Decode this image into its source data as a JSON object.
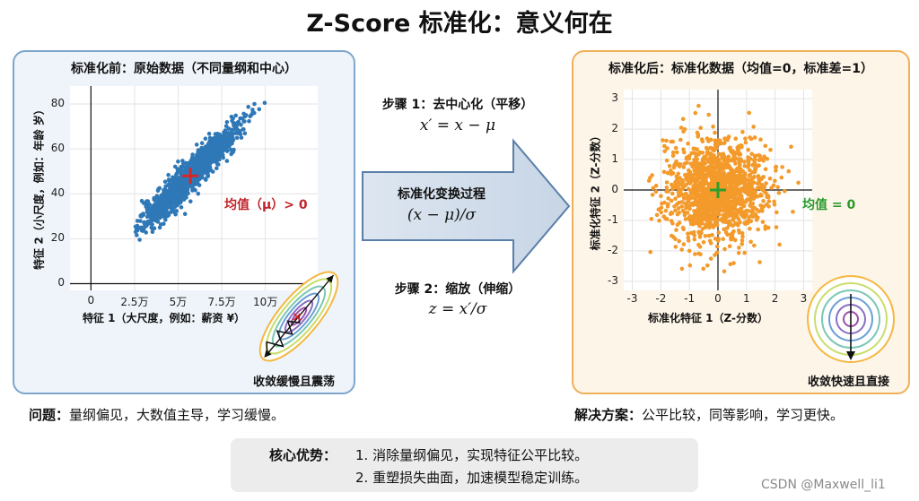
{
  "title": "Z-Score 标准化：意义何在",
  "left_panel": {
    "title": "标准化前：原始数据（不同量纲和中心）",
    "mean_label": "均值（μ）> 0",
    "x_axis_label": "特征 1（大尺度，例如：薪资 ¥）",
    "y_axis_label": "特征 2（小尺度，例如：年龄 岁）",
    "x_ticks": [
      "0",
      "2.5万",
      "5万",
      "7.5万",
      "10万"
    ],
    "y_ticks": [
      "0",
      "20",
      "40",
      "60",
      "80"
    ],
    "inset_caption": "收敛缓慢且震荡",
    "mean_marker": "+"
  },
  "right_panel": {
    "title": "标准化后：标准化数据（均值=0，标准差=1）",
    "mean_label": "均值 = 0",
    "x_axis_label": "标准化特征 1（Z-分数）",
    "y_axis_label": "标准化特征 2（Z-分数）",
    "x_ticks": [
      "-3",
      "-2",
      "-1",
      "0",
      "1",
      "2",
      "3"
    ],
    "y_ticks": [
      "3",
      "2",
      "1",
      "0",
      "-1",
      "-2",
      "-3"
    ],
    "inset_caption": "收敛快速且直接",
    "mean_marker": "+"
  },
  "middle": {
    "step1_title": "步骤 1：去中心化（平移）",
    "step1_formula": "x′ = x − μ",
    "arrow_title": "标准化变换过程",
    "arrow_formula": "(x − μ)/σ",
    "step2_title": "步骤 2：缩放（伸缩）",
    "step2_formula": "z = x′/σ"
  },
  "problem": {
    "label": "问题：",
    "text": "量纲偏见，大数值主导，学习缓慢。"
  },
  "solution": {
    "label": "解决方案：",
    "text": "公平比较，同等影响，学习更快。"
  },
  "core": {
    "label": "核心优势：",
    "line1": "1. 消除量纲偏见，实现特征公平比较。",
    "line2": "2. 重塑损失曲面，加速模型稳定训练。"
  },
  "watermark": "CSDN @Maxwell_li1",
  "colors": {
    "left_points": "#2f78b7",
    "right_points": "#f39a2b",
    "left_mean": "#d62728",
    "right_mean": "#2ca02c",
    "left_border": "#7ea6cc",
    "right_border": "#f0b058"
  },
  "chart_data": [
    {
      "type": "scatter",
      "title": "标准化前：原始数据（不同量纲和中心）",
      "xlabel": "特征 1（大尺度，例如：薪资 ¥）",
      "ylabel": "特征 2（小尺度，例如：年龄 岁）",
      "xlim": [
        -12000,
        130000
      ],
      "ylim": [
        -3,
        88
      ],
      "x_ticks": [
        0,
        25000,
        50000,
        75000,
        100000
      ],
      "y_ticks": [
        0,
        20,
        40,
        60,
        80
      ],
      "mean": {
        "x": 57000,
        "y": 48
      },
      "x_range_of_points": [
        25000,
        100000
      ],
      "y_range_of_points": [
        20,
        84
      ],
      "correlation": "strong positive",
      "annotation": "均值（μ）> 0",
      "grid": true
    },
    {
      "type": "scatter",
      "title": "标准化后：标准化数据（均值=0，标准差=1）",
      "xlabel": "标准化特征 1（Z-分数）",
      "ylabel": "标准化特征 2（Z-分数）",
      "xlim": [
        -3.3,
        3.3
      ],
      "ylim": [
        -3.3,
        3.3
      ],
      "x_ticks": [
        -3,
        -2,
        -1,
        0,
        1,
        2,
        3
      ],
      "y_ticks": [
        -3,
        -2,
        -1,
        0,
        1,
        2,
        3
      ],
      "mean": {
        "x": 0,
        "y": 0
      },
      "std": 1,
      "annotation": "均值 = 0",
      "grid": true
    }
  ]
}
